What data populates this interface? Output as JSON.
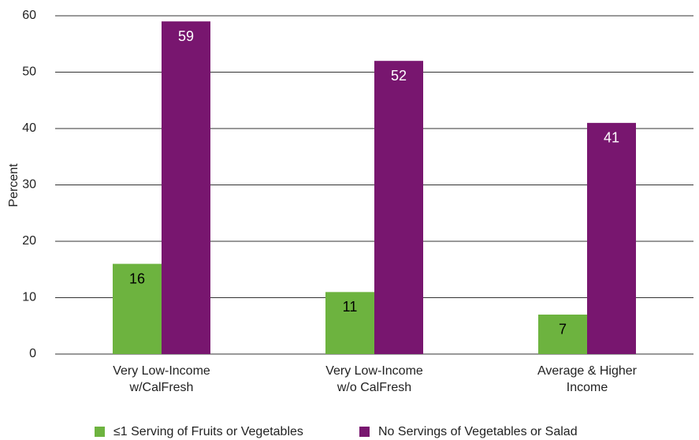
{
  "chart_data": {
    "type": "bar",
    "ylabel": "Percent",
    "categories": [
      [
        "Very Low-Income",
        "w/CalFresh"
      ],
      [
        "Very Low-Income",
        "w/o CalFresh"
      ],
      [
        "Average & Higher",
        "Income"
      ]
    ],
    "series": [
      {
        "name": "≤1 Serving of Fruits or Vegetables",
        "color": "#6db33f",
        "label_color": "#000000",
        "values": [
          16,
          11,
          7
        ]
      },
      {
        "name": "No Servings of Vegetables or Salad",
        "color": "#78166f",
        "label_color": "#ffffff",
        "values": [
          59,
          52,
          41
        ]
      }
    ],
    "ylim": [
      0,
      60
    ],
    "yticks": [
      0,
      10,
      20,
      30,
      40,
      50,
      60
    ],
    "grid": true,
    "legend": "bottom"
  }
}
